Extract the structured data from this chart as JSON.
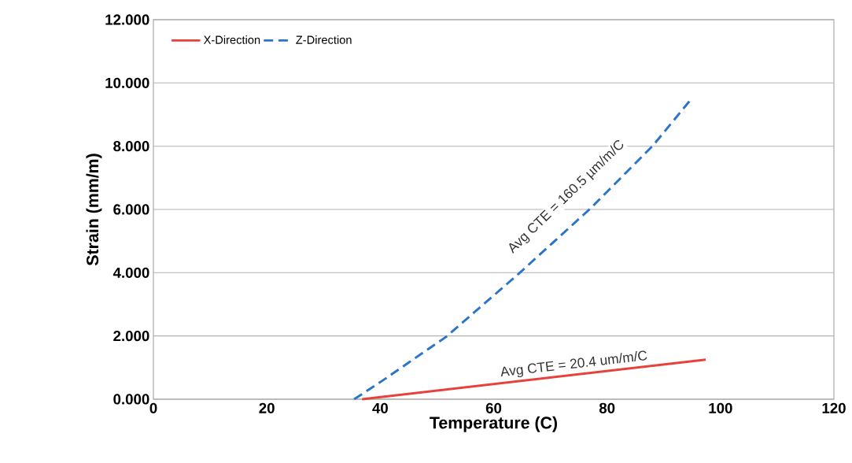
{
  "chart_data": {
    "type": "line",
    "xlabel": "Temperature (C)",
    "ylabel": "Strain (mm/m)",
    "xlim": [
      0,
      120
    ],
    "xticks": [
      0,
      20,
      40,
      60,
      80,
      100,
      120
    ],
    "ylim": [
      0,
      12
    ],
    "yticks": [
      {
        "value": 0,
        "label": "0.000"
      },
      {
        "value": 2,
        "label": "2.000"
      },
      {
        "value": 4,
        "label": "4.000"
      },
      {
        "value": 6,
        "label": "6.000"
      },
      {
        "value": 8,
        "label": "8.000"
      },
      {
        "value": 10,
        "label": "10.000"
      },
      {
        "value": 12,
        "label": "12.000"
      }
    ],
    "grid": "y",
    "legend": "top left",
    "marker": "none",
    "series": [
      {
        "name": "X-Direction",
        "color": "#e8413c",
        "line_style": "solid",
        "x": [
          36.8,
          97.4
        ],
        "values": [
          0,
          1.25
        ]
      },
      {
        "name": "Z-Direction",
        "color": "#2a75c9",
        "line_style": "dashed",
        "x": [
          35.4,
          40.5,
          45.1,
          51.6,
          64.5,
          77.0,
          88.1,
          94.7
        ],
        "values": [
          0,
          0.6,
          1.17,
          1.97,
          3.98,
          6.02,
          8.02,
          9.46
        ]
      }
    ],
    "annotations": [
      "Avg CTE = 20.4 um/m/C",
      "Avg CTE = 160.5 µm/m/C"
    ]
  }
}
